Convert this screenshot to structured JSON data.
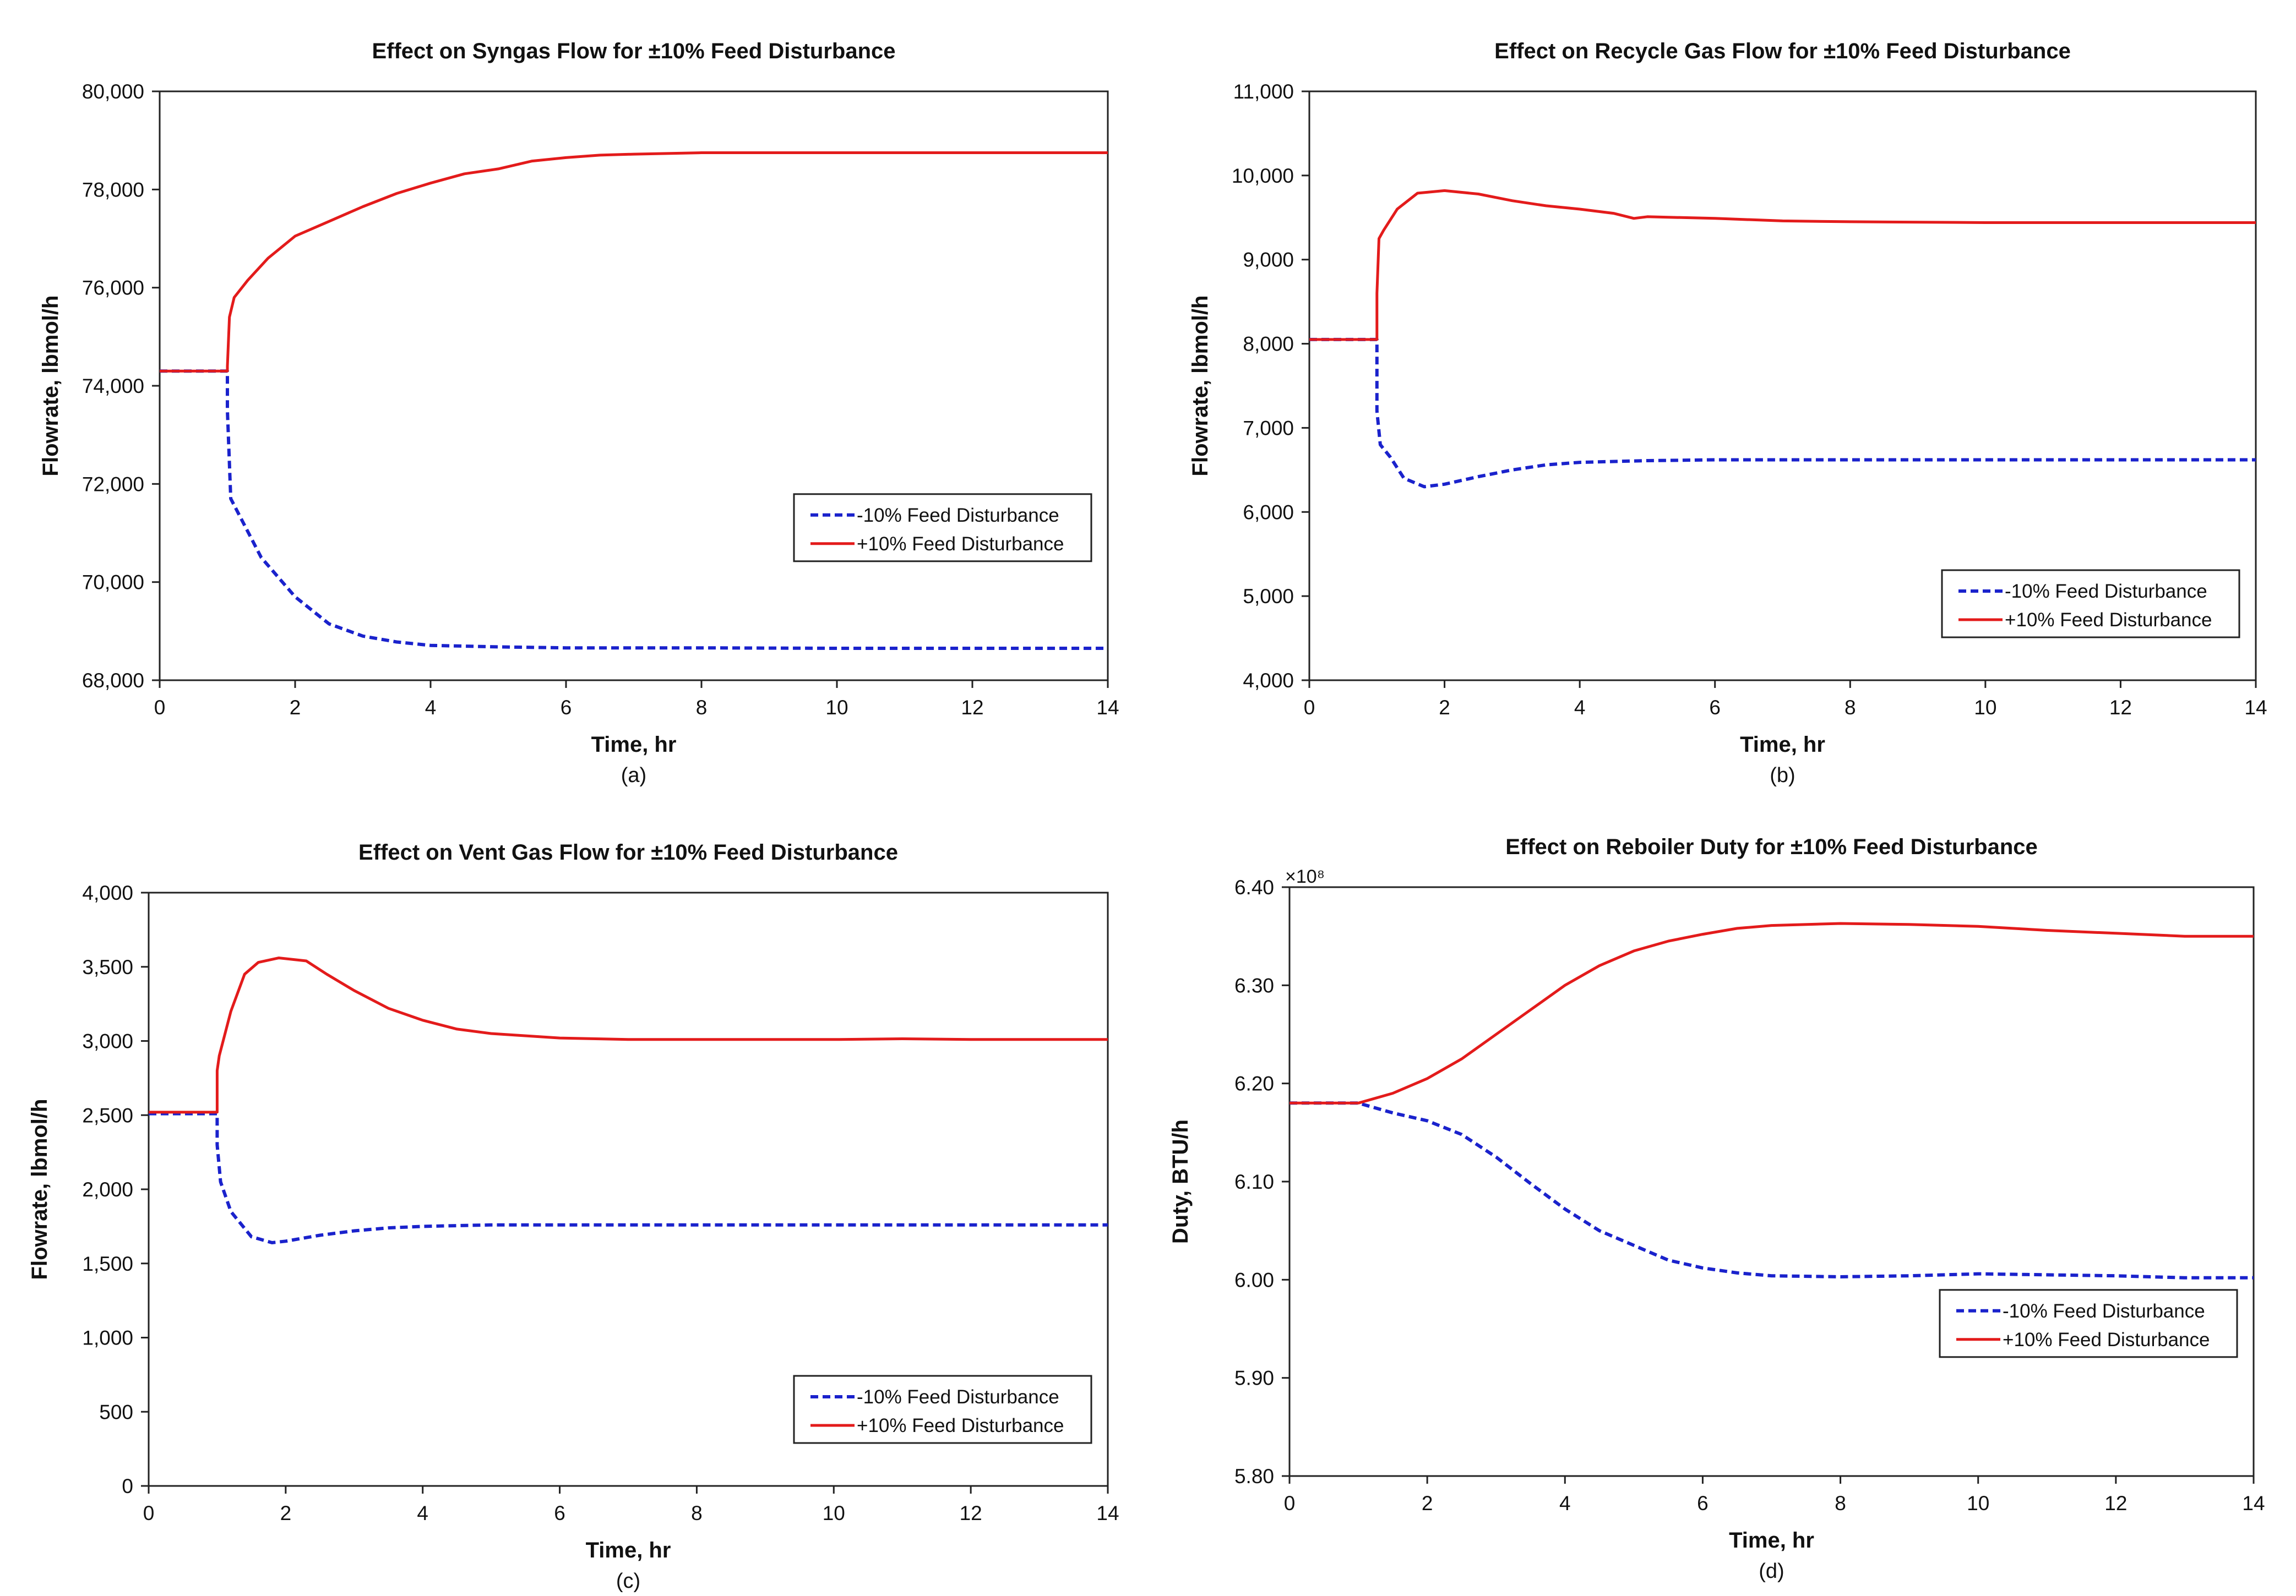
{
  "figure": {
    "background": "#ffffff"
  },
  "series_styles": {
    "minus": {
      "color": "#1a22cc",
      "dashed": true
    },
    "plus": {
      "color": "#e31b1b",
      "dashed": false
    }
  },
  "chart_data": [
    {
      "id": "a",
      "type": "line",
      "title": "Effect on Syngas Flow for ±10% Feed Disturbance",
      "xlabel": "Time, hr",
      "ylabel": "Flowrate, lbmol/h",
      "caption": "(a)",
      "xlim": [
        0,
        14
      ],
      "ylim": [
        68000,
        80000
      ],
      "xticks": [
        0,
        2,
        4,
        6,
        8,
        10,
        12,
        14
      ],
      "xtick_labels": [
        "0",
        "2",
        "4",
        "6",
        "8",
        "10",
        "12",
        "14"
      ],
      "yticks": [
        68000,
        70000,
        72000,
        74000,
        76000,
        78000,
        80000
      ],
      "ytick_labels": [
        "68,000",
        "70,000",
        "72,000",
        "74,000",
        "76,000",
        "78,000",
        "80,000"
      ],
      "exponent_label": "",
      "legend": {
        "position": "right-middle"
      },
      "series": [
        {
          "name": "-10% Feed Disturbance",
          "style": "minus",
          "points": [
            [
              0,
              74300
            ],
            [
              1,
              74300
            ],
            [
              1.0,
              73500
            ],
            [
              1.05,
              71700
            ],
            [
              1.2,
              71300
            ],
            [
              1.5,
              70500
            ],
            [
              2,
              69700
            ],
            [
              2.5,
              69150
            ],
            [
              3,
              68900
            ],
            [
              3.5,
              68780
            ],
            [
              4,
              68710
            ],
            [
              5,
              68680
            ],
            [
              6,
              68660
            ],
            [
              8,
              68660
            ],
            [
              10,
              68650
            ],
            [
              12,
              68650
            ],
            [
              14,
              68650
            ]
          ]
        },
        {
          "name": "+10% Feed Disturbance",
          "style": "plus",
          "points": [
            [
              0,
              74300
            ],
            [
              1,
              74300
            ],
            [
              1.0,
              74400
            ],
            [
              1.03,
              75400
            ],
            [
              1.1,
              75800
            ],
            [
              1.3,
              76150
            ],
            [
              1.6,
              76600
            ],
            [
              2,
              77050
            ],
            [
              2.5,
              77350
            ],
            [
              3,
              77650
            ],
            [
              3.5,
              77920
            ],
            [
              4,
              78130
            ],
            [
              4.5,
              78320
            ],
            [
              5,
              78420
            ],
            [
              5.5,
              78580
            ],
            [
              6,
              78650
            ],
            [
              6.5,
              78700
            ],
            [
              7,
              78720
            ],
            [
              8,
              78750
            ],
            [
              10,
              78750
            ],
            [
              12,
              78750
            ],
            [
              14,
              78750
            ]
          ]
        }
      ]
    },
    {
      "id": "b",
      "type": "line",
      "title": "Effect on Recycle Gas Flow for ±10% Feed Disturbance",
      "xlabel": "Time, hr",
      "ylabel": "Flowrate, lbmol/h",
      "caption": "(b)",
      "xlim": [
        0,
        14
      ],
      "ylim": [
        4000,
        11000
      ],
      "xticks": [
        0,
        2,
        4,
        6,
        8,
        10,
        12,
        14
      ],
      "xtick_labels": [
        "0",
        "2",
        "4",
        "6",
        "8",
        "10",
        "12",
        "14"
      ],
      "yticks": [
        4000,
        5000,
        6000,
        7000,
        8000,
        9000,
        10000,
        11000
      ],
      "ytick_labels": [
        "4,000",
        "5,000",
        "6,000",
        "7,000",
        "8,000",
        "9,000",
        "10,000",
        "11,000"
      ],
      "exponent_label": "",
      "legend": {
        "position": "bottom-right"
      },
      "series": [
        {
          "name": "-10% Feed Disturbance",
          "style": "minus",
          "points": [
            [
              0,
              8050
            ],
            [
              1,
              8050
            ],
            [
              1.0,
              7200
            ],
            [
              1.05,
              6800
            ],
            [
              1.2,
              6650
            ],
            [
              1.4,
              6400
            ],
            [
              1.7,
              6300
            ],
            [
              2,
              6330
            ],
            [
              2.5,
              6420
            ],
            [
              3,
              6500
            ],
            [
              3.5,
              6560
            ],
            [
              4,
              6590
            ],
            [
              5,
              6610
            ],
            [
              6,
              6620
            ],
            [
              8,
              6620
            ],
            [
              10,
              6620
            ],
            [
              12,
              6620
            ],
            [
              14,
              6620
            ]
          ]
        },
        {
          "name": "+10% Feed Disturbance",
          "style": "plus",
          "points": [
            [
              0,
              8050
            ],
            [
              1,
              8050
            ],
            [
              1.0,
              8600
            ],
            [
              1.03,
              9250
            ],
            [
              1.1,
              9350
            ],
            [
              1.3,
              9600
            ],
            [
              1.6,
              9790
            ],
            [
              2,
              9820
            ],
            [
              2.5,
              9780
            ],
            [
              3,
              9700
            ],
            [
              3.5,
              9640
            ],
            [
              4,
              9600
            ],
            [
              4.5,
              9550
            ],
            [
              4.8,
              9490
            ],
            [
              5,
              9510
            ],
            [
              6,
              9490
            ],
            [
              7,
              9460
            ],
            [
              8,
              9450
            ],
            [
              10,
              9440
            ],
            [
              12,
              9440
            ],
            [
              14,
              9440
            ]
          ]
        }
      ]
    },
    {
      "id": "c",
      "type": "line",
      "title": "Effect on Vent Gas Flow for ±10% Feed Disturbance",
      "xlabel": "Time, hr",
      "ylabel": "Flowrate, lbmol/h",
      "caption": "(c)",
      "xlim": [
        0,
        14
      ],
      "ylim": [
        0,
        4000
      ],
      "xticks": [
        0,
        2,
        4,
        6,
        8,
        10,
        12,
        14
      ],
      "xtick_labels": [
        "0",
        "2",
        "4",
        "6",
        "8",
        "10",
        "12",
        "14"
      ],
      "yticks": [
        0,
        500,
        1000,
        1500,
        2000,
        2500,
        3000,
        3500,
        4000
      ],
      "ytick_labels": [
        "0",
        "500",
        "1,000",
        "1,500",
        "2,000",
        "2,500",
        "3,000",
        "3,500",
        "4,000"
      ],
      "exponent_label": "",
      "legend": {
        "position": "bottom-right"
      },
      "series": [
        {
          "name": "-10% Feed Disturbance",
          "style": "minus",
          "points": [
            [
              0,
              2510
            ],
            [
              1,
              2510
            ],
            [
              1.0,
              2300
            ],
            [
              1.05,
              2050
            ],
            [
              1.2,
              1850
            ],
            [
              1.5,
              1680
            ],
            [
              1.8,
              1640
            ],
            [
              2,
              1650
            ],
            [
              2.5,
              1690
            ],
            [
              3,
              1720
            ],
            [
              3.5,
              1740
            ],
            [
              4,
              1750
            ],
            [
              5,
              1760
            ],
            [
              6,
              1760
            ],
            [
              8,
              1760
            ],
            [
              10,
              1760
            ],
            [
              12,
              1760
            ],
            [
              14,
              1760
            ]
          ]
        },
        {
          "name": "+10% Feed Disturbance",
          "style": "plus",
          "points": [
            [
              0,
              2520
            ],
            [
              1,
              2520
            ],
            [
              1.0,
              2800
            ],
            [
              1.03,
              2900
            ],
            [
              1.2,
              3200
            ],
            [
              1.4,
              3450
            ],
            [
              1.6,
              3530
            ],
            [
              1.9,
              3560
            ],
            [
              2.3,
              3540
            ],
            [
              2.6,
              3450
            ],
            [
              3,
              3340
            ],
            [
              3.5,
              3220
            ],
            [
              4,
              3140
            ],
            [
              4.5,
              3080
            ],
            [
              5,
              3050
            ],
            [
              6,
              3020
            ],
            [
              7,
              3010
            ],
            [
              8,
              3010
            ],
            [
              10,
              3010
            ],
            [
              11,
              3015
            ],
            [
              12,
              3010
            ],
            [
              14,
              3010
            ]
          ]
        }
      ]
    },
    {
      "id": "d",
      "type": "line",
      "title": "Effect on Reboiler Duty for ±10% Feed Disturbance",
      "xlabel": "Time, hr",
      "ylabel": "Duty, BTU/h",
      "caption": "(d)",
      "xlim": [
        0,
        14
      ],
      "ylim": [
        5.8,
        6.4
      ],
      "xticks": [
        0,
        2,
        4,
        6,
        8,
        10,
        12,
        14
      ],
      "xtick_labels": [
        "0",
        "2",
        "4",
        "6",
        "8",
        "10",
        "12",
        "14"
      ],
      "yticks": [
        5.8,
        5.9,
        6.0,
        6.1,
        6.2,
        6.3,
        6.4
      ],
      "ytick_labels": [
        "5.80",
        "5.90",
        "6.00",
        "6.10",
        "6.20",
        "6.30",
        "6.40"
      ],
      "exponent_label": "×10⁸",
      "legend": {
        "position": "right-middle"
      },
      "series": [
        {
          "name": "-10% Feed Disturbance",
          "style": "minus",
          "points": [
            [
              0,
              6.18
            ],
            [
              1,
              6.18
            ],
            [
              1.5,
              6.17
            ],
            [
              2,
              6.162
            ],
            [
              2.5,
              6.148
            ],
            [
              3,
              6.125
            ],
            [
              3.5,
              6.098
            ],
            [
              4,
              6.072
            ],
            [
              4.5,
              6.05
            ],
            [
              5,
              6.035
            ],
            [
              5.5,
              6.02
            ],
            [
              6,
              6.012
            ],
            [
              6.5,
              6.007
            ],
            [
              7,
              6.004
            ],
            [
              8,
              6.003
            ],
            [
              9,
              6.004
            ],
            [
              10,
              6.006
            ],
            [
              11,
              6.005
            ],
            [
              12,
              6.004
            ],
            [
              13,
              6.002
            ],
            [
              14,
              6.002
            ]
          ]
        },
        {
          "name": "+10% Feed Disturbance",
          "style": "plus",
          "points": [
            [
              0,
              6.18
            ],
            [
              1,
              6.18
            ],
            [
              1.5,
              6.19
            ],
            [
              2,
              6.205
            ],
            [
              2.5,
              6.225
            ],
            [
              3,
              6.25
            ],
            [
              3.5,
              6.275
            ],
            [
              4,
              6.3
            ],
            [
              4.5,
              6.32
            ],
            [
              5,
              6.335
            ],
            [
              5.5,
              6.345
            ],
            [
              6,
              6.352
            ],
            [
              6.5,
              6.358
            ],
            [
              7,
              6.361
            ],
            [
              8,
              6.363
            ],
            [
              9,
              6.362
            ],
            [
              10,
              6.36
            ],
            [
              11,
              6.356
            ],
            [
              12,
              6.353
            ],
            [
              13,
              6.35
            ],
            [
              14,
              6.35
            ]
          ]
        }
      ]
    }
  ]
}
